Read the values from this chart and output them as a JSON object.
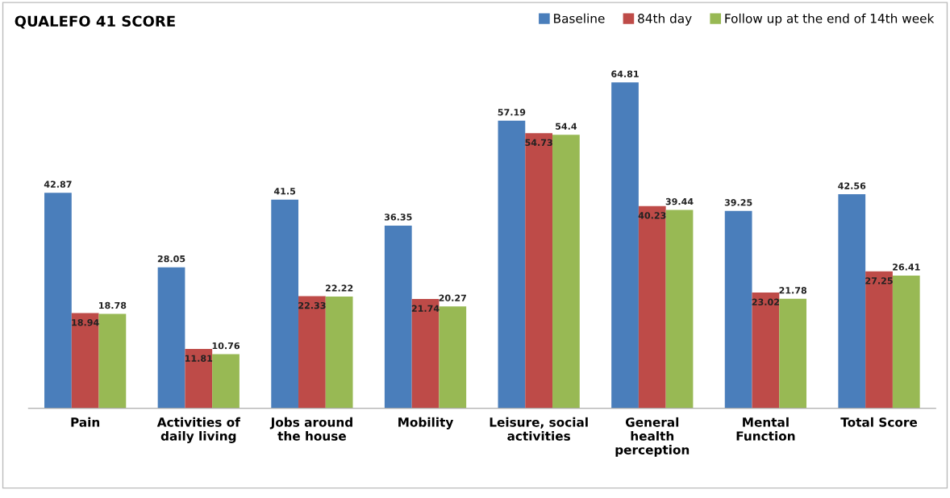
{
  "chart_data": {
    "type": "bar",
    "title": "QUALEFO 41 SCORE",
    "categories": [
      "Pain",
      "Activities of\ndaily living",
      "Jobs around\nthe house",
      "Mobility",
      "Leisure, social\nactivities",
      "General\nhealth\nperception",
      "Mental\nFunction",
      "Total Score"
    ],
    "series": [
      {
        "name": "Baseline",
        "color": "#4a7ebb",
        "values": [
          42.87,
          28.05,
          41.5,
          36.35,
          57.19,
          64.81,
          39.25,
          42.56
        ]
      },
      {
        "name": "84th day",
        "color": "#be4b48",
        "values": [
          18.94,
          11.81,
          22.33,
          21.74,
          54.73,
          40.23,
          23.02,
          27.25
        ]
      },
      {
        "name": "Follow up at the end of 14th week",
        "color": "#98b954",
        "values": [
          18.78,
          10.76,
          22.22,
          20.27,
          54.4,
          39.44,
          21.78,
          26.41
        ]
      }
    ],
    "data_labels": true,
    "legend": "top right",
    "grid": false,
    "tick_labels": "x"
  }
}
